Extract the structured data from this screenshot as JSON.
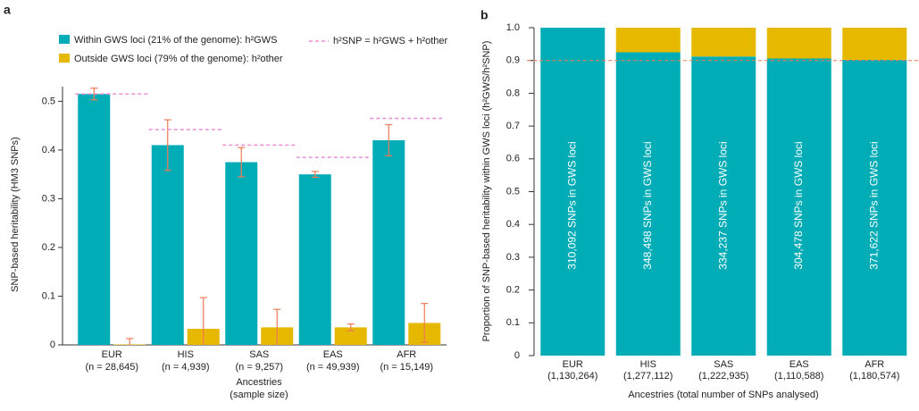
{
  "chart_data": [
    {
      "type": "grouped_bar",
      "panel_label": "a",
      "categories": [
        "EUR",
        "HIS",
        "SAS",
        "EAS",
        "AFR"
      ],
      "category_sublabels": [
        "(n = 28,645)",
        "(n = 4,939)",
        "(n = 9,257)",
        "(n = 49,939)",
        "(n = 15,149)"
      ],
      "series": [
        {
          "name": "Within GWS loci (21% of the genome): h²GWS",
          "color": "#00adb7",
          "values": [
            0.515,
            0.41,
            0.375,
            0.35,
            0.42
          ],
          "errors": [
            0.012,
            0.052,
            0.03,
            0.006,
            0.032
          ]
        },
        {
          "name": "Outside GWS loci (79% of the genome): h²other",
          "color": "#e6b800",
          "values": [
            0.001,
            0.033,
            0.036,
            0.036,
            0.045
          ],
          "errors": [
            0.012,
            0.064,
            0.037,
            0.007,
            0.04
          ]
        }
      ],
      "reference": {
        "name": "h²SNP = h²GWS + h²other",
        "color": "#ee8fd6",
        "values": [
          0.515,
          0.442,
          0.41,
          0.385,
          0.465
        ]
      },
      "error_color": "#f07a55",
      "y_label": "SNP-based heritability (HM3 SNPs)",
      "x_label": [
        "Ancestries",
        "(sample size)"
      ],
      "ylim": [
        0,
        0.53
      ],
      "yticks": [
        0,
        0.1,
        0.2,
        0.3,
        0.4,
        0.5
      ]
    },
    {
      "type": "stacked_bar",
      "panel_label": "b",
      "categories": [
        "EUR",
        "HIS",
        "SAS",
        "EAS",
        "AFR"
      ],
      "category_sublabels": [
        "(1,130,264)",
        "(1,277,112)",
        "(1,222,935)",
        "(1,110,588)",
        "(1,180,574)"
      ],
      "series": [
        {
          "color": "#00adb7",
          "values": [
            1.0,
            0.925,
            0.912,
            0.906,
            0.902
          ]
        },
        {
          "color": "#e6b800",
          "values": [
            0,
            0.075,
            0.088,
            0.094,
            0.098
          ]
        }
      ],
      "bar_annotations": [
        "310,092 SNPs in GWS loci",
        "348,498 SNPs in GWS loci",
        "334,237 SNPs in GWS loci",
        "304,478 SNPs in GWS loci",
        "371,622 SNPs in GWS loci"
      ],
      "reference_line": 0.9,
      "reference_color": "#f07a55",
      "y_label": "Proportion of SNP-based heritability within GWS loci (h²GWS/h²SNP)",
      "x_label": "Ancestries (total number of SNPs analysed)",
      "ylim": [
        0,
        1
      ],
      "yticks": [
        0,
        0.1,
        0.2,
        0.3,
        0.4,
        0.5,
        0.6,
        0.7,
        0.8,
        0.9,
        {
          "value": 1,
          "label": "1.0"
        }
      ]
    }
  ]
}
